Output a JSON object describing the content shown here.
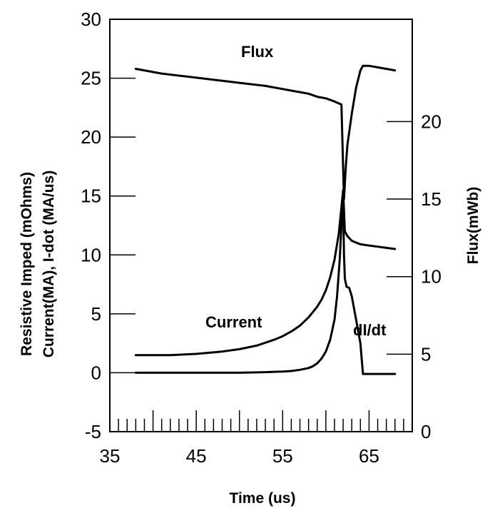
{
  "chart_data": {
    "type": "line",
    "title": "",
    "xlabel": "Time (us)",
    "ylabel_left_line1": "Resistive Imped (mOhms)",
    "ylabel_left_line2": "Current(MA), I-dot (MA/us)",
    "ylabel_right": "Flux(mWb)",
    "xlim": [
      35,
      70
    ],
    "ylim_left": [
      -5,
      30
    ],
    "ylim_right": [
      0,
      26.6
    ],
    "x_ticks": [
      35,
      45,
      55,
      65
    ],
    "x_tick_labels": [
      "35",
      "45",
      "55",
      "65"
    ],
    "x_minor_ticks": [
      36,
      37,
      38,
      39,
      40,
      41,
      42,
      43,
      44,
      45,
      46,
      47,
      48,
      49,
      50,
      51,
      52,
      53,
      54,
      55,
      56,
      57,
      58,
      59,
      60,
      61,
      62,
      63,
      64,
      65,
      66,
      67,
      68,
      69,
      70
    ],
    "y_left_ticks": [
      -5,
      0,
      5,
      10,
      15,
      20,
      25,
      30
    ],
    "y_left_tick_labels": [
      "-5",
      "0",
      "5",
      "10",
      "15",
      "20",
      "25",
      "30"
    ],
    "y_right_ticks": [
      0,
      5,
      10,
      15,
      20
    ],
    "y_right_tick_labels": [
      "0",
      "5",
      "10",
      "15",
      "20"
    ],
    "grid": false,
    "series": [
      {
        "name": "Flux",
        "axis": "right",
        "x": [
          38,
          41,
          44,
          47,
          50,
          53,
          56,
          58,
          59,
          60,
          61,
          61.8,
          62.0,
          62.1,
          62.3,
          62.5,
          63,
          63.5,
          64,
          64.3,
          65,
          66,
          67,
          68
        ],
        "y": [
          23.4,
          23.1,
          22.9,
          22.7,
          22.5,
          22.3,
          22.0,
          21.8,
          21.6,
          21.5,
          21.3,
          21.1,
          17.0,
          15.0,
          17.0,
          18.5,
          20.5,
          22.2,
          23.3,
          23.6,
          23.6,
          23.5,
          23.4,
          23.3
        ],
        "label": "Flux"
      },
      {
        "name": "Current",
        "axis": "left",
        "x": [
          38,
          42,
          45,
          48,
          50,
          52,
          54,
          55,
          56,
          57,
          58,
          59,
          59.5,
          60,
          60.5,
          61,
          61.5,
          62,
          62.2,
          62.5,
          63,
          64,
          65,
          66,
          67,
          68
        ],
        "y": [
          1.5,
          1.5,
          1.6,
          1.8,
          2.0,
          2.3,
          2.8,
          3.1,
          3.5,
          4.0,
          4.7,
          5.6,
          6.2,
          7.0,
          8.1,
          9.6,
          11.8,
          15.5,
          12.0,
          11.6,
          11.2,
          10.9,
          10.8,
          10.7,
          10.6,
          10.5
        ],
        "label": "Current"
      },
      {
        "name": "dI/dt",
        "axis": "left",
        "x": [
          38,
          45,
          50,
          53,
          55,
          56,
          57,
          58,
          58.5,
          59,
          59.5,
          60,
          60.5,
          61,
          61.3,
          61.6,
          61.8,
          62.0,
          62.1,
          62.2,
          62.4,
          62.7,
          63,
          63.5,
          64,
          64.3,
          65,
          66,
          67,
          68
        ],
        "y": [
          0.0,
          0.0,
          0.0,
          0.05,
          0.1,
          0.15,
          0.25,
          0.4,
          0.55,
          0.8,
          1.2,
          1.8,
          2.8,
          4.5,
          6.5,
          9.5,
          12.5,
          14.5,
          10.0,
          8.0,
          7.3,
          7.2,
          6.5,
          4.5,
          2.5,
          -0.1,
          -0.1,
          -0.1,
          -0.1,
          -0.1
        ],
        "label": "dI/dt"
      }
    ],
    "annotations": [
      "Flux",
      "Current",
      "dI/dt"
    ]
  }
}
